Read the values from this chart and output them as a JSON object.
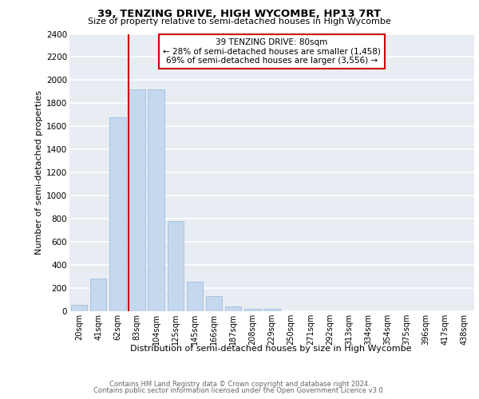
{
  "title": "39, TENZING DRIVE, HIGH WYCOMBE, HP13 7RT",
  "subtitle": "Size of property relative to semi-detached houses in High Wycombe",
  "xlabel": "Distribution of semi-detached houses by size in High Wycombe",
  "ylabel": "Number of semi-detached properties",
  "categories": [
    "20sqm",
    "41sqm",
    "62sqm",
    "83sqm",
    "104sqm",
    "125sqm",
    "145sqm",
    "166sqm",
    "187sqm",
    "208sqm",
    "229sqm",
    "250sqm",
    "271sqm",
    "292sqm",
    "313sqm",
    "334sqm",
    "354sqm",
    "375sqm",
    "396sqm",
    "417sqm",
    "438sqm"
  ],
  "values": [
    55,
    280,
    1680,
    1920,
    1920,
    780,
    255,
    130,
    40,
    22,
    22,
    0,
    0,
    0,
    0,
    0,
    0,
    0,
    0,
    0,
    0
  ],
  "bar_color": "#c5d8ee",
  "bar_edge_color": "#a0bedd",
  "marker_label": "39 TENZING DRIVE: 80sqm",
  "smaller_pct": "28%",
  "smaller_count": "1,458",
  "larger_pct": "69%",
  "larger_count": "3,556",
  "marker_color": "#cc0000",
  "annotation_box_color": "#cc0000",
  "ylim": [
    0,
    2400
  ],
  "yticks": [
    0,
    200,
    400,
    600,
    800,
    1000,
    1200,
    1400,
    1600,
    1800,
    2000,
    2200,
    2400
  ],
  "bg_color": "#e8edf3",
  "grid_color": "#ffffff",
  "footer_line1": "Contains HM Land Registry data © Crown copyright and database right 2024.",
  "footer_line2": "Contains public sector information licensed under the Open Government Licence v3.0."
}
